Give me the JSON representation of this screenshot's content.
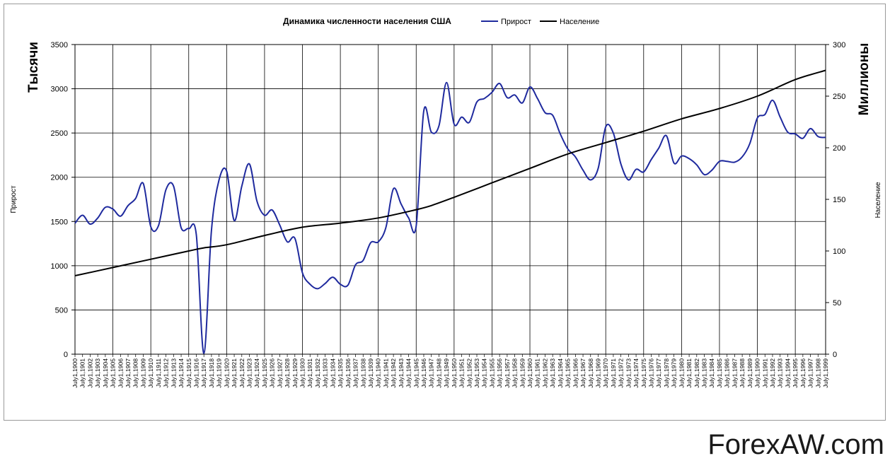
{
  "chart_data": {
    "type": "line",
    "title": "Динамика численности населения США",
    "left_axis": {
      "title": "Тысячи",
      "side_label": "Прирост",
      "ylim": [
        0,
        3500
      ],
      "ticks": [
        "0",
        "500",
        "1000",
        "1500",
        "2000",
        "2500",
        "3000",
        "3500"
      ]
    },
    "right_axis": {
      "title": "Миллионы",
      "side_label": "Население",
      "ylim": [
        0,
        300
      ],
      "ticks": [
        "0",
        "50",
        "100",
        "150",
        "200",
        "250",
        "300"
      ]
    },
    "legend": {
      "position": "top",
      "entries": [
        "Прирост",
        "Население"
      ]
    },
    "grid": true,
    "x_label_prefix": "July1,",
    "x_start_year": 1900,
    "x_end_year": 1999,
    "series": [
      {
        "name": "Прирост",
        "axis": "left",
        "color": "#1f2a9e",
        "x": [
          1900,
          1901,
          1902,
          1903,
          1904,
          1905,
          1906,
          1907,
          1908,
          1909,
          1910,
          1911,
          1912,
          1913,
          1914,
          1915,
          1916,
          1917,
          1918,
          1919,
          1920,
          1921,
          1922,
          1923,
          1924,
          1925,
          1926,
          1927,
          1928,
          1929,
          1930,
          1931,
          1932,
          1933,
          1934,
          1935,
          1936,
          1937,
          1938,
          1939,
          1940,
          1941,
          1942,
          1943,
          1944,
          1945,
          1946,
          1947,
          1948,
          1949,
          1950,
          1951,
          1952,
          1953,
          1954,
          1955,
          1956,
          1957,
          1958,
          1959,
          1960,
          1961,
          1962,
          1963,
          1964,
          1965,
          1966,
          1967,
          1968,
          1969,
          1970,
          1971,
          1972,
          1973,
          1974,
          1975,
          1976,
          1977,
          1978,
          1979,
          1980,
          1981,
          1982,
          1983,
          1984,
          1985,
          1986,
          1987,
          1988,
          1989,
          1990,
          1991,
          1992,
          1993,
          1994,
          1995,
          1996,
          1997,
          1998,
          1999
        ],
        "values": [
          1480,
          1570,
          1470,
          1540,
          1660,
          1640,
          1560,
          1680,
          1760,
          1930,
          1440,
          1450,
          1860,
          1900,
          1430,
          1420,
          1350,
          10,
          1400,
          1970,
          2070,
          1510,
          1900,
          2150,
          1730,
          1570,
          1630,
          1460,
          1270,
          1310,
          920,
          790,
          740,
          800,
          870,
          790,
          780,
          1010,
          1060,
          1260,
          1270,
          1430,
          1870,
          1700,
          1540,
          1450,
          2750,
          2510,
          2580,
          3070,
          2600,
          2680,
          2620,
          2850,
          2890,
          2960,
          3060,
          2900,
          2930,
          2840,
          3020,
          2890,
          2730,
          2700,
          2490,
          2320,
          2230,
          2080,
          1970,
          2100,
          2570,
          2500,
          2150,
          1970,
          2090,
          2060,
          2200,
          2330,
          2470,
          2160,
          2240,
          2210,
          2140,
          2030,
          2080,
          2180,
          2180,
          2170,
          2230,
          2380,
          2670,
          2710,
          2870,
          2680,
          2510,
          2490,
          2440,
          2550,
          2460,
          2450
        ]
      },
      {
        "name": "Население",
        "axis": "right",
        "color": "#000000",
        "x": [
          1900,
          1905,
          1910,
          1915,
          1917,
          1920,
          1925,
          1930,
          1935,
          1940,
          1945,
          1947,
          1950,
          1955,
          1960,
          1965,
          1970,
          1975,
          1980,
          1985,
          1990,
          1995,
          1999
        ],
        "values": [
          76,
          84,
          92,
          100,
          103,
          106,
          115,
          123,
          127,
          132,
          140,
          144,
          152,
          166,
          180,
          194,
          205,
          216,
          228,
          238,
          250,
          266,
          275
        ]
      }
    ]
  },
  "watermark": "ForexAW.com"
}
